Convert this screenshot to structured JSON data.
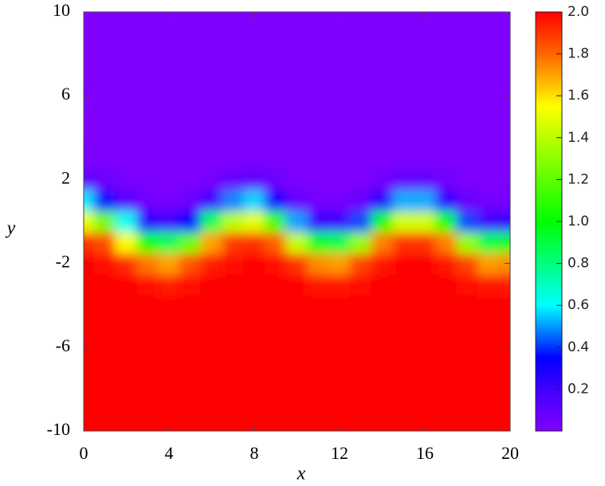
{
  "chart_data": {
    "type": "heatmap",
    "x_label": "x",
    "y_label": "y",
    "x": [
      0,
      1,
      2,
      3,
      4,
      5,
      6,
      7,
      8,
      9,
      10,
      11,
      12,
      13,
      14,
      15,
      16,
      17,
      18,
      19,
      20
    ],
    "y": [
      -10,
      -9,
      -8,
      -7,
      -6,
      -5,
      -4,
      -3,
      -2,
      -1,
      0,
      1,
      2,
      3,
      4,
      5,
      6,
      7,
      8,
      9,
      10
    ],
    "z": [
      [
        2,
        2,
        2,
        2,
        2,
        2,
        2,
        2,
        2,
        2,
        2,
        2,
        2,
        2,
        2,
        2,
        2,
        2,
        2,
        2,
        2
      ],
      [
        2,
        2,
        2,
        2,
        2,
        2,
        2,
        2,
        2,
        2,
        2,
        2,
        2,
        2,
        2,
        2,
        2,
        2,
        2,
        2,
        2
      ],
      [
        2,
        2,
        2,
        2,
        2,
        2,
        2,
        2,
        2,
        2,
        2,
        2,
        2,
        2,
        2,
        2,
        2,
        2,
        2,
        2,
        2
      ],
      [
        2,
        2,
        2,
        2,
        2,
        2,
        2,
        2,
        2,
        2,
        2,
        2,
        2,
        2,
        2,
        2,
        2,
        2,
        2,
        2,
        2
      ],
      [
        2,
        2,
        2,
        2,
        2,
        2,
        2,
        2,
        2,
        2,
        2,
        2,
        2,
        2,
        2,
        2,
        2,
        2,
        2,
        2,
        2
      ],
      [
        2,
        2,
        2,
        2,
        2,
        2,
        2,
        2,
        2,
        2,
        2,
        2,
        2,
        2,
        2,
        2,
        2,
        2,
        2,
        2,
        2
      ],
      [
        2,
        2,
        2,
        2,
        1.99,
        2,
        2,
        2,
        2,
        2,
        2,
        1.99,
        1.99,
        2,
        2,
        2,
        2,
        2,
        2,
        1.99,
        1.99
      ],
      [
        2,
        2,
        1.99,
        1.97,
        1.95,
        1.98,
        1.99,
        2,
        2,
        2,
        1.99,
        1.96,
        1.96,
        1.98,
        2,
        2,
        2,
        2,
        1.98,
        1.96,
        1.96
      ],
      [
        1.99,
        1.98,
        1.92,
        1.77,
        1.7,
        1.84,
        1.95,
        1.98,
        1.99,
        1.97,
        1.9,
        1.74,
        1.71,
        1.87,
        1.96,
        1.99,
        1.99,
        1.96,
        1.87,
        1.71,
        1.74
      ],
      [
        1.91,
        1.85,
        1.54,
        1.02,
        0.86,
        1.22,
        1.7,
        1.89,
        1.91,
        1.81,
        1.43,
        0.95,
        0.89,
        1.32,
        1.76,
        1.9,
        1.9,
        1.76,
        1.32,
        0.89,
        0.95
      ],
      [
        1.5,
        1.24,
        0.62,
        0.25,
        0.19,
        0.35,
        0.87,
        1.4,
        1.49,
        1.13,
        0.51,
        0.22,
        0.2,
        0.42,
        1.0,
        1.45,
        1.45,
        1.0,
        0.42,
        0.2,
        0.22
      ],
      [
        0.58,
        0.36,
        0.12,
        0.04,
        0.03,
        0.06,
        0.19,
        0.48,
        0.56,
        0.3,
        0.09,
        0.03,
        0.03,
        0.07,
        0.24,
        0.52,
        0.52,
        0.24,
        0.07,
        0.03,
        0.03
      ],
      [
        0.1,
        0.06,
        0.02,
        0.01,
        0,
        0.01,
        0.03,
        0.08,
        0.1,
        0.05,
        0.01,
        0,
        0,
        0.01,
        0.04,
        0.09,
        0.09,
        0.04,
        0.01,
        0,
        0
      ],
      [
        0.01,
        0.01,
        0,
        0,
        0,
        0,
        0,
        0.01,
        0.01,
        0.01,
        0,
        0,
        0,
        0,
        0,
        0.01,
        0.01,
        0,
        0,
        0,
        0
      ],
      [
        0,
        0,
        0,
        0,
        0,
        0,
        0,
        0,
        0,
        0,
        0,
        0,
        0,
        0,
        0,
        0,
        0,
        0,
        0,
        0,
        0
      ],
      [
        0,
        0,
        0,
        0,
        0,
        0,
        0,
        0,
        0,
        0,
        0,
        0,
        0,
        0,
        0,
        0,
        0,
        0,
        0,
        0,
        0
      ],
      [
        0,
        0,
        0,
        0,
        0,
        0,
        0,
        0,
        0,
        0,
        0,
        0,
        0,
        0,
        0,
        0,
        0,
        0,
        0,
        0,
        0
      ],
      [
        0,
        0,
        0,
        0,
        0,
        0,
        0,
        0,
        0,
        0,
        0,
        0,
        0,
        0,
        0,
        0,
        0,
        0,
        0,
        0,
        0
      ],
      [
        0,
        0,
        0,
        0,
        0,
        0,
        0,
        0,
        0,
        0,
        0,
        0,
        0,
        0,
        0,
        0,
        0,
        0,
        0,
        0,
        0
      ],
      [
        0,
        0,
        0,
        0,
        0,
        0,
        0,
        0,
        0,
        0,
        0,
        0,
        0,
        0,
        0,
        0,
        0,
        0,
        0,
        0,
        0
      ],
      [
        0,
        0,
        0,
        0,
        0,
        0,
        0,
        0,
        0,
        0,
        0,
        0,
        0,
        0,
        0,
        0,
        0,
        0,
        0,
        0,
        0
      ]
    ],
    "xlim": [
      0,
      20
    ],
    "xticks": [
      0,
      4,
      8,
      12,
      16,
      20
    ],
    "ylim": [
      -10,
      10
    ],
    "yticks": [
      -10,
      -6,
      -2,
      2,
      6,
      10
    ],
    "clim": [
      0,
      2
    ],
    "cticks": [
      0.2,
      0.4,
      0.6,
      0.8,
      {
        "value": 1,
        "label": "1.0"
      },
      1.2,
      1.4,
      1.6,
      1.8,
      {
        "value": 2,
        "label": "2.0"
      }
    ],
    "colorscale": [
      [
        0,
        "#7f00ff"
      ],
      [
        0.2,
        "#4000ff"
      ],
      [
        0.35,
        "#0000ff"
      ],
      [
        0.6,
        "#00ffff"
      ],
      [
        1,
        "#00ff00"
      ],
      [
        1.55,
        "#ffff00"
      ],
      [
        1.8,
        "#ff6600"
      ],
      [
        2,
        "#ff0000"
      ]
    ]
  }
}
